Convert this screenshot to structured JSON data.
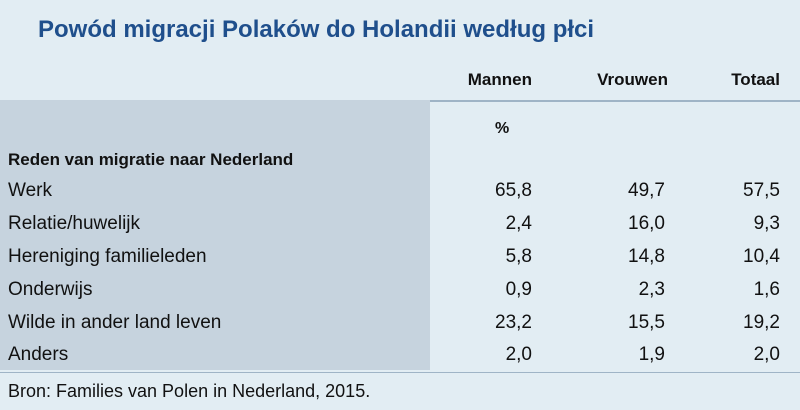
{
  "title": "Powód migracji Polaków do Holandii według płci",
  "table": {
    "columns": [
      "Mannen",
      "Vrouwen",
      "Totaal"
    ],
    "unit": "%",
    "row_header": "Reden van migratie naar Nederland",
    "rows": [
      {
        "label": "Werk",
        "values": [
          "65,8",
          "49,7",
          "57,5"
        ]
      },
      {
        "label": "Relatie/huwelijk",
        "values": [
          "2,4",
          "16,0",
          "9,3"
        ]
      },
      {
        "label": "Hereniging familieleden",
        "values": [
          "5,8",
          "14,8",
          "10,4"
        ]
      },
      {
        "label": "Onderwijs",
        "values": [
          "0,9",
          "2,3",
          "1,6"
        ]
      },
      {
        "label": "Wilde in ander land leven",
        "values": [
          "23,2",
          "15,5",
          "19,2"
        ]
      },
      {
        "label": "Anders",
        "values": [
          "2,0",
          "1,9",
          "2,0"
        ]
      }
    ]
  },
  "source": "Bron: Families van Polen in Nederland, 2015.",
  "colors": {
    "background": "#e2edf3",
    "title": "#1f4f8c",
    "label_panel": "#c6d3de"
  }
}
